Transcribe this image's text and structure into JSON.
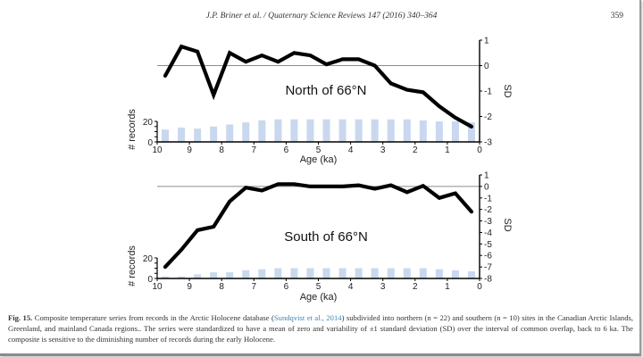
{
  "header": {
    "running_head": "J.P. Briner et al. / Quaternary Science Reviews 147 (2016) 340–364",
    "page_number": "359"
  },
  "caption": {
    "label": "Fig. 15.",
    "text_before_cite": " Composite temperature series from records in the Arctic Holocene database (",
    "citation": "Sundqvist et al., 2014",
    "text_after_cite": ") subdivided into northern (n = 22) and southern (n = 10) sites in the Canadian Arctic Islands, Greenland, and mainland Canada regions.. The series were standardized to have a mean of zero and variability of ±1 standard deviation (SD) over the interval of common overlap, back to 6 ka. The composite is sensitive to the diminishing number of records during the early Holocene."
  },
  "colors": {
    "line": "#000000",
    "bars": "#c9d8ee",
    "zero_line": "#8c8c8c",
    "citation": "#3a87b4"
  },
  "chart_data": [
    {
      "type": "line",
      "title": "North of 66°N",
      "xlabel": "Age (ka)",
      "ylabel": "SD",
      "secondary_ylabel": "# records",
      "x_ticks": [
        "10",
        "9",
        "8",
        "7",
        "6",
        "5",
        "4",
        "3",
        "2",
        "1",
        "0"
      ],
      "xlim": [
        10,
        0
      ],
      "ylim": [
        -3,
        1
      ],
      "y_ticks": [
        "1",
        "0",
        "-1",
        "-2",
        "-3"
      ],
      "records_ylim": [
        0,
        20
      ],
      "records_ticks": [
        "20",
        "0"
      ],
      "zero_line": true,
      "x": [
        9.75,
        9.25,
        8.75,
        8.25,
        7.75,
        7.25,
        6.75,
        6.25,
        5.75,
        5.25,
        4.75,
        4.25,
        3.75,
        3.25,
        2.75,
        2.25,
        1.75,
        1.25,
        0.75,
        0.25
      ],
      "series": [
        {
          "name": "SD composite",
          "type": "line",
          "values": [
            -0.4,
            0.75,
            0.55,
            -1.15,
            0.5,
            0.15,
            0.4,
            0.15,
            0.5,
            0.4,
            0.05,
            0.25,
            0.25,
            0.0,
            -0.7,
            -0.95,
            -1.05,
            -1.6,
            -2.05,
            -2.4
          ]
        },
        {
          "name": "# records",
          "type": "bar",
          "values": [
            12,
            14,
            13,
            15,
            17,
            19,
            21,
            22,
            22,
            22,
            22,
            22,
            22,
            22,
            22,
            22,
            21,
            20,
            20,
            19
          ]
        }
      ]
    },
    {
      "type": "line",
      "title": "South of 66°N",
      "xlabel": "Age (ka)",
      "ylabel": "SD",
      "secondary_ylabel": "# records",
      "x_ticks": [
        "10",
        "9",
        "8",
        "7",
        "6",
        "5",
        "4",
        "3",
        "2",
        "1",
        "0"
      ],
      "xlim": [
        10,
        0
      ],
      "ylim": [
        -8,
        1
      ],
      "y_ticks": [
        "1",
        "0",
        "-1",
        "-2",
        "-3",
        "-4",
        "-5",
        "-6",
        "-7",
        "-8"
      ],
      "records_ylim": [
        0,
        20
      ],
      "records_ticks": [
        "20",
        "0"
      ],
      "zero_line": true,
      "x": [
        9.75,
        9.25,
        8.75,
        8.25,
        7.75,
        7.25,
        6.75,
        6.25,
        5.75,
        5.25,
        4.75,
        4.25,
        3.75,
        3.25,
        2.75,
        2.25,
        1.75,
        1.25,
        0.75,
        0.25
      ],
      "series": [
        {
          "name": "SD composite",
          "type": "line",
          "values": [
            -7.0,
            -5.5,
            -3.8,
            -3.5,
            -1.3,
            -0.1,
            -0.35,
            0.2,
            0.2,
            0.0,
            0.0,
            0.0,
            0.1,
            -0.2,
            0.1,
            -0.5,
            0.05,
            -1.0,
            -0.6,
            -2.2
          ]
        },
        {
          "name": "# records",
          "type": "bar",
          "values": [
            2,
            2,
            4,
            6,
            6,
            8,
            9,
            10,
            10,
            10,
            10,
            10,
            10,
            10,
            10,
            10,
            10,
            9,
            8,
            7
          ]
        }
      ]
    }
  ]
}
